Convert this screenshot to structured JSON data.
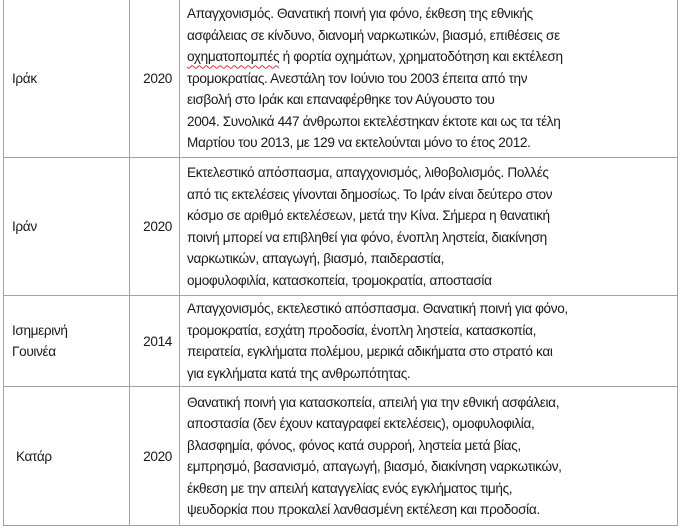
{
  "rows": [
    {
      "country": "Ιράκ",
      "year": "2020",
      "lines": [
        "Απαγχονισμός. Θανατική ποινή για φόνο, έκθεση της εθνικής",
        "ασφάλειας σε κίνδυνο, διανομή ναρκωτικών, βιασμό, επιθέσεις σε",
        "οχηματοπομπές ή φορτία οχημάτων, χρηματοδότηση και εκτέλεση",
        "τρομοκρατίας. Ανεστάλη τον Ιούνιο του 2003 έπειτα από την",
        "εισβολή στο Ιράκ και επαναφέρθηκε τον Αύγουστο του",
        "2004. Συνολικά 447 άνθρωποι εκτελέστηκαν έκτοτε και ως τα τέλη",
        "Μαρτίου του 2013, με 129 να εκτελούνται μόνο το έτος 2012."
      ]
    },
    {
      "country": "Ιράν",
      "year": "2020",
      "lines": [
        "Εκτελεστικό απόσπασμα, απαγχονισμός, λιθοβολισμός. Πολλές",
        "από τις εκτελέσεις γίνονται δημοσίως. Το Ιράν είναι δεύτερο στον",
        "κόσμο σε αριθμό εκτελέσεων, μετά την Κίνα. Σήμερα η θανατική",
        "ποινή μπορεί να επιβληθεί για φόνο, ένοπλη ληστεία, διακίνηση",
        "ναρκωτικών, απαγωγή, βιασμό, παιδεραστία,",
        "ομοφυλοφιλία, κατασκοπεία, τρομοκρατία, αποστασία"
      ]
    },
    {
      "country": "Ισημερινή Γουινέα",
      "country_lines": [
        "Ισημερινή",
        "Γουινέα"
      ],
      "year": "2014",
      "lines": [
        "Απαγχονισμός, εκτελεστικό απόσπασμα. Θανατική ποινή για φόνο,",
        "τρομοκρατία, εσχάτη προδοσία, ένοπλη ληστεία, κατασκοπία,",
        "πειρατεία, εγκλήματα πολέμου, μερικά αδικήματα στο στρατό και",
        "για εγκλήματα κατά της ανθρωπότητας."
      ]
    },
    {
      "country": "Κατάρ",
      "year": "2020",
      "lines": [
        "Θανατική ποινή για κατασκοπεία, απειλή για την εθνική ασφάλεια,",
        "αποστασία (δεν έχουν καταγραφεί εκτελέσεις), ομοφυλοφιλία,",
        "βλασφημία, φόνος, φόνος κατά συρροή, ληστεία μετά βίας,",
        "εμπρησμό, βασανισμό, απαγωγή, βιασμό, διακίνηση ναρκωτικών,",
        "έκθεση με την απειλή καταγγελίας ενός εγκλήματος τιμής,",
        "ψευδορκία που προκαλεί λανθασμένη εκτέλεση και προδοσία."
      ]
    }
  ]
}
